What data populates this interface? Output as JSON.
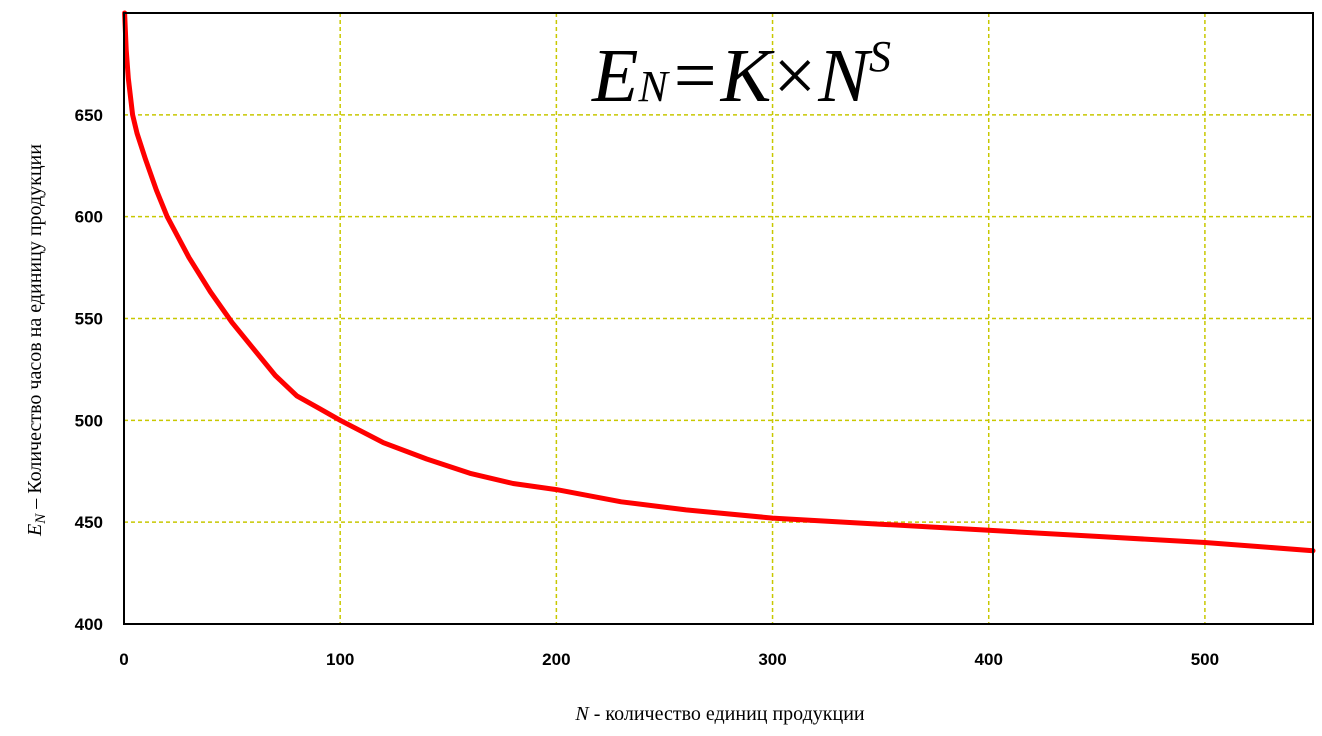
{
  "chart_data": {
    "type": "line",
    "title": "",
    "formula": {
      "lhs": "E",
      "lhs_sub": "N",
      "eq": "=",
      "k": "K",
      "times": "×",
      "base": "N",
      "exponent": "S"
    },
    "xlabel": {
      "var": "N",
      "text": " - количество единиц продукции"
    },
    "ylabel": {
      "var": "E",
      "sub": "N",
      "text": " – Количество часов на единицу продукции"
    },
    "xlim": [
      0,
      550
    ],
    "ylim": [
      400,
      700
    ],
    "x_ticks": [
      "0",
      "100",
      "200",
      "300",
      "400",
      "500"
    ],
    "y_ticks": [
      "400",
      "450",
      "500",
      "550",
      "600",
      "650"
    ],
    "grid": true,
    "colors": {
      "line": "#ff0000",
      "grid": "#c8c800",
      "axis": "#000000"
    },
    "series": [
      {
        "x": [
          0.3,
          1,
          2,
          4,
          6,
          10,
          15,
          20,
          30,
          40,
          50,
          60,
          70,
          80,
          90,
          100,
          120,
          140,
          160,
          180,
          200,
          230,
          260,
          300,
          350,
          400,
          450,
          500,
          550
        ],
        "y": [
          700,
          682,
          668,
          650,
          641,
          628,
          613,
          600,
          580,
          563,
          548,
          535,
          522,
          512,
          506,
          500,
          489,
          481,
          474,
          469,
          466,
          460,
          456,
          452,
          449,
          446,
          443,
          440,
          436
        ]
      }
    ]
  }
}
